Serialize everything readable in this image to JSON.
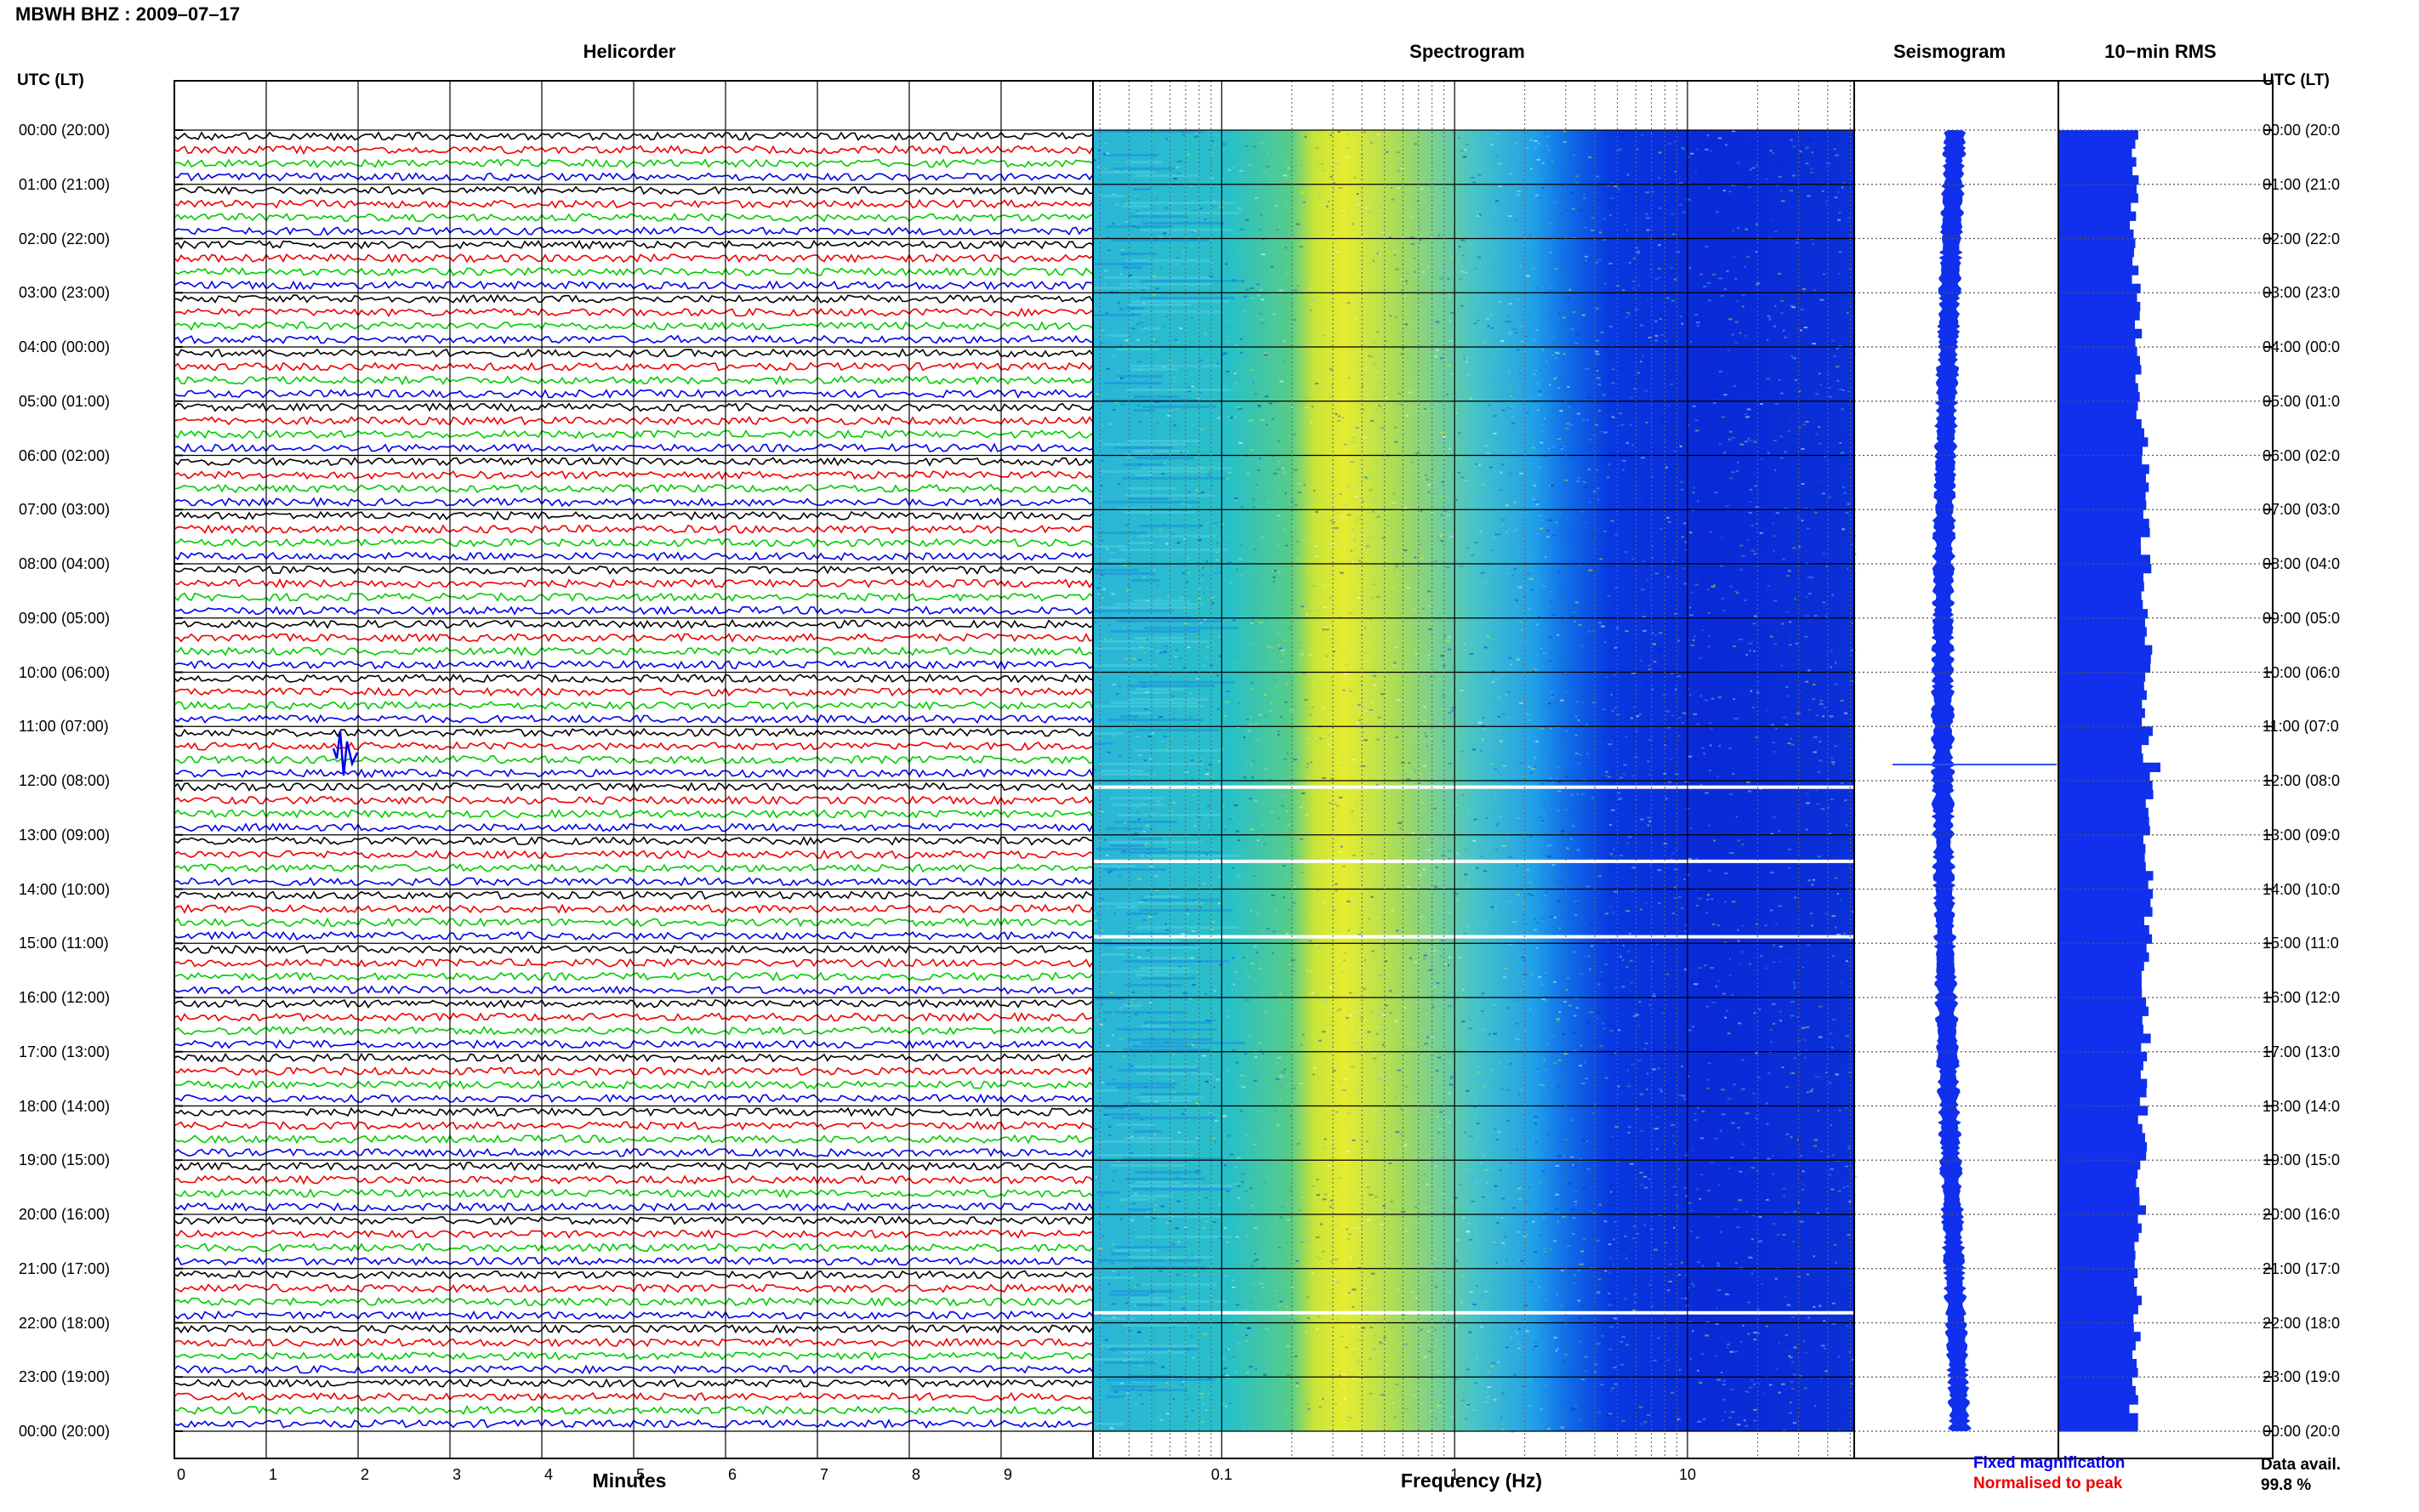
{
  "page_title": "MBWH BHZ : 2009–07–17",
  "columns": {
    "helicorder": "Helicorder",
    "spectrogram": "Spectrogram",
    "seismogram": "Seismogram",
    "rms": "10−min RMS"
  },
  "utc_header_left": "UTC (LT)",
  "utc_header_right": "UTC (LT)",
  "time_labels_left": [
    "00:00 (20:00)",
    "01:00 (21:00)",
    "02:00 (22:00)",
    "03:00 (23:00)",
    "04:00 (00:00)",
    "05:00 (01:00)",
    "06:00 (02:00)",
    "07:00 (03:00)",
    "08:00 (04:00)",
    "09:00 (05:00)",
    "10:00 (06:00)",
    "11:00 (07:00)",
    "12:00 (08:00)",
    "13:00 (09:00)",
    "14:00 (10:00)",
    "15:00 (11:00)",
    "16:00 (12:00)",
    "17:00 (13:00)",
    "18:00 (14:00)",
    "19:00 (15:00)",
    "20:00 (16:00)",
    "21:00 (17:00)",
    "22:00 (18:00)",
    "23:00 (19:00)",
    "00:00 (20:00)"
  ],
  "time_labels_right": [
    "00:00 (20:0",
    "01:00 (21:0",
    "02:00 (22:0",
    "03:00 (23:0",
    "04:00 (00:0",
    "05:00 (01:0",
    "06:00 (02:0",
    "07:00 (03:0",
    "08:00 (04:0",
    "09:00 (05:0",
    "10:00 (06:0",
    "11:00 (07:0",
    "12:00 (08:0",
    "13:00 (09:0",
    "14:00 (10:0",
    "15:00 (11:0",
    "16:00 (12:0",
    "17:00 (13:0",
    "18:00 (14:0",
    "19:00 (15:0",
    "20:00 (16:0",
    "21:00 (17:0",
    "22:00 (18:0",
    "23:00 (19:0",
    "00:00 (20:0"
  ],
  "helicorder_axis": {
    "label": "Minutes",
    "ticks": [
      "0",
      "1",
      "2",
      "3",
      "4",
      "5",
      "6",
      "7",
      "8",
      "9"
    ],
    "trace_colors": [
      "#000000",
      "#ee0000",
      "#00cc00",
      "#0000ee"
    ]
  },
  "spectrogram_axis": {
    "label": "Frequency (Hz)",
    "ticks": [
      "0.1",
      "1",
      "10"
    ],
    "scale": "log"
  },
  "legend": {
    "fixed": "Fixed magnification",
    "normalised": "Normalised to peak",
    "fixed_color": "#0000ee",
    "normalised_color": "#ee0000"
  },
  "data_availability": {
    "label": "Data avail.",
    "value": "99.8 %"
  }
}
